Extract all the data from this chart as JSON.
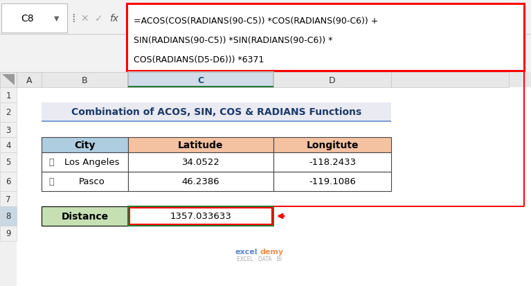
{
  "formula_text_line1": "=ACOS(COS(RADIANS(90-C5)) *COS(RADIANS(90-C6)) +",
  "formula_text_line2": "SIN(RADIANS(90-C5)) *SIN(RADIANS(90-C6)) *",
  "formula_text_line3": "COS(RADIANS(D5-D6))) *6371",
  "cell_ref": "C8",
  "title": "Combination of ACOS, SIN, COS & RADIANS Functions",
  "header_city": "City",
  "header_lat": "Latitude",
  "header_lon": "Longitute",
  "city1": "Los Angeles",
  "city2": "Pasco",
  "lat1": "34.0522",
  "lat2": "46.2386",
  "lon1": "-118.2433",
  "lon2": "-119.1086",
  "distance_label": "Distance",
  "distance_value": "1357.033633",
  "bg_color": "#ffffff",
  "formula_border_color": "#ff0000",
  "header_city_bg": "#aecde1",
  "header_latlon_bg": "#f4c2a1",
  "title_bg": "#eaeaf2",
  "table_border": "#444444",
  "distance_label_bg": "#c6e0b4",
  "distance_value_border_green": "#1e7b34",
  "distance_value_border_red": "#ff0000",
  "col_header_bg": "#e8e8e8",
  "col_c_header_bg": "#d0dce8",
  "row_num_bg": "#f0f0f0",
  "row_8_num_bg": "#c8d8e4",
  "excel_toolbar_bg": "#f2f2f2",
  "watermark_excel": "#4472c4",
  "watermark_demy": "#ed7d31",
  "watermark_sub": "#888888"
}
